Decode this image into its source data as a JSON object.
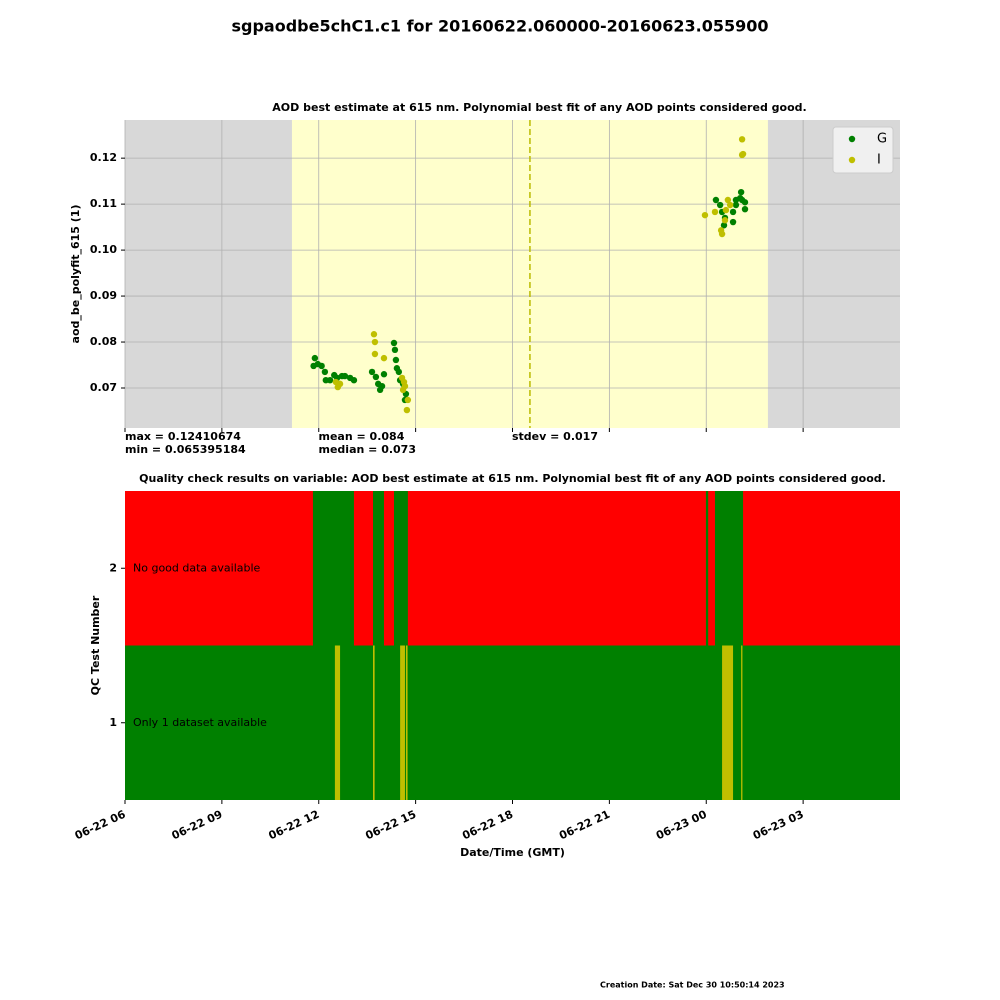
{
  "title": "sgpaodbe5chC1.c1 for 20160622.060000-20160623.055900",
  "chart_data": [
    {
      "type": "scatter",
      "title": "AOD best estimate at 615 nm. Polynomial best fit of any AOD points considered good.",
      "y_label": "aod_be_polyfit_615 (1)",
      "xlim": [
        6,
        30
      ],
      "xticks": [
        6,
        9,
        12,
        15,
        18,
        21,
        24,
        27
      ],
      "ylim": [
        0.0613,
        0.1283
      ],
      "yticks": [
        {
          "value": 0.07,
          "label": "0.07"
        },
        {
          "value": 0.08,
          "label": "0.08"
        },
        {
          "value": 0.09,
          "label": "0.09"
        },
        {
          "value": 0.1,
          "label": "0.10"
        },
        {
          "value": 0.11,
          "label": "0.11"
        },
        {
          "value": 0.12,
          "label": "0.12"
        }
      ],
      "grid": true,
      "legend": "upper right",
      "shaded_span": [
        11.17,
        25.91
      ],
      "vline": 18.54,
      "stats": [
        [
          "max = 0.12410674",
          "min = 0.065395184"
        ],
        [
          "mean = 0.084",
          "median = 0.073"
        ],
        [
          "stdev = 0.017"
        ]
      ],
      "series": [
        {
          "name": "G",
          "color": "#008000",
          "x": [
            11.88,
            11.97,
            12.09,
            11.84,
            12.19,
            12.22,
            12.35,
            12.48,
            12.57,
            12.72,
            12.81,
            12.97,
            13.09,
            13.65,
            13.77,
            13.84,
            13.9,
            13.96,
            14.02,
            14.33,
            14.36,
            14.39,
            14.42,
            14.48,
            14.52,
            14.61,
            14.7,
            14.67,
            24.3,
            24.43,
            24.49,
            24.58,
            24.55,
            24.83,
            24.83,
            24.92,
            25.05,
            25.08,
            25.11,
            25.2,
            25.2,
            24.92
          ],
          "values": [
            0.0765,
            0.0752,
            0.0748,
            0.0748,
            0.0735,
            0.0717,
            0.0717,
            0.0728,
            0.0722,
            0.0726,
            0.0726,
            0.0722,
            0.0717,
            0.0735,
            0.0724,
            0.0709,
            0.0696,
            0.0704,
            0.073,
            0.0798,
            0.0783,
            0.0761,
            0.0743,
            0.0735,
            0.0717,
            0.0709,
            0.0687,
            0.0674,
            0.1109,
            0.1098,
            0.1083,
            0.107,
            0.1054,
            0.1083,
            0.1061,
            0.1109,
            0.1113,
            0.1126,
            0.1109,
            0.1104,
            0.1089,
            0.1098
          ]
        },
        {
          "name": "I",
          "color": "#bfbf00",
          "x": [
            13.71,
            13.74,
            13.74,
            14.02,
            12.53,
            12.59,
            12.66,
            14.58,
            14.64,
            14.67,
            14.61,
            14.76,
            14.73,
            23.96,
            24.27,
            24.46,
            24.49,
            24.58,
            24.67,
            24.74,
            24.61,
            25.11,
            25.14,
            25.11
          ],
          "values": [
            0.0817,
            0.08,
            0.0774,
            0.0765,
            0.0713,
            0.0702,
            0.0709,
            0.0722,
            0.0713,
            0.0704,
            0.0696,
            0.0674,
            0.0652,
            0.1076,
            0.1083,
            0.1043,
            0.1035,
            0.1065,
            0.1109,
            0.1098,
            0.1087,
            0.1241,
            0.1209,
            0.1207
          ]
        }
      ]
    },
    {
      "type": "timeline",
      "title": "Quality check results on variable: AOD best estimate at 615 nm. Polynomial best fit of any AOD points considered good.",
      "x_label": "Date/Time (GMT)",
      "y_label": "QC Test Number",
      "xlim": [
        6,
        30
      ],
      "xticks": [
        {
          "value": 6,
          "label": "06-22 06"
        },
        {
          "value": 9,
          "label": "06-22 09"
        },
        {
          "value": 12,
          "label": "06-22 12"
        },
        {
          "value": 15,
          "label": "06-22 15"
        },
        {
          "value": 18,
          "label": "06-22 18"
        },
        {
          "value": 21,
          "label": "06-22 21"
        },
        {
          "value": 24,
          "label": "06-23 00"
        },
        {
          "value": 27,
          "label": "06-23 03"
        }
      ],
      "ylim": [
        0.5,
        2.5
      ],
      "yticks": [
        1,
        2
      ],
      "rows": [
        {
          "test": 2,
          "label": "No good data available",
          "segments": [
            {
              "start": 6,
              "end": 30,
              "color": "#ff0000"
            },
            {
              "start": 11.82,
              "end": 13.09,
              "color": "#008000"
            },
            {
              "start": 13.68,
              "end": 14.02,
              "color": "#008000"
            },
            {
              "start": 14.33,
              "end": 14.76,
              "color": "#008000"
            },
            {
              "start": 23.99,
              "end": 24.06,
              "color": "#008000"
            },
            {
              "start": 24.27,
              "end": 25.14,
              "color": "#008000"
            }
          ]
        },
        {
          "test": 1,
          "label": "Only 1 dataset available",
          "segments": [
            {
              "start": 6,
              "end": 30,
              "color": "#008000"
            },
            {
              "start": 12.5,
              "end": 12.66,
              "color": "#bfbf00"
            },
            {
              "start": 13.68,
              "end": 13.73,
              "color": "#bfbf00"
            },
            {
              "start": 14.52,
              "end": 14.67,
              "color": "#bfbf00"
            },
            {
              "start": 14.7,
              "end": 14.75,
              "color": "#bfbf00"
            },
            {
              "start": 24.49,
              "end": 24.83,
              "color": "#bfbf00"
            },
            {
              "start": 25.08,
              "end": 25.12,
              "color": "#bfbf00"
            }
          ]
        }
      ]
    }
  ],
  "footer": "Creation Date: Sat Dec 30 10:50:14 2023"
}
